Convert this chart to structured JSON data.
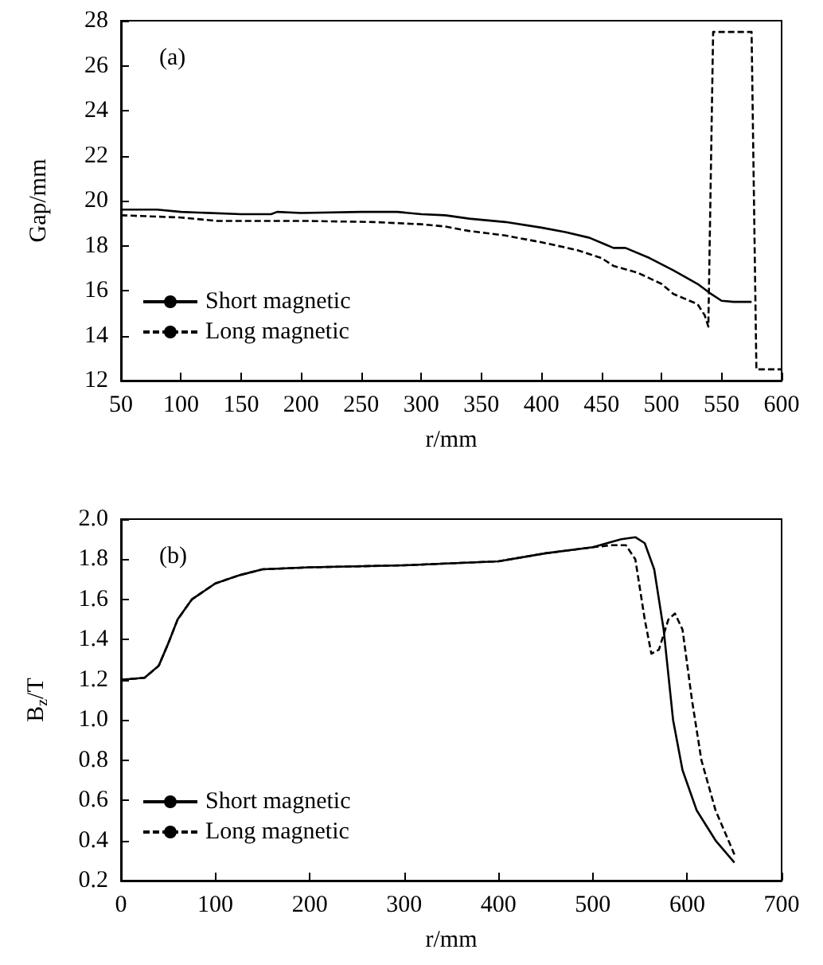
{
  "chart_data": [
    {
      "type": "line",
      "xlabel": "r/mm",
      "ylabel": "Gap/mm",
      "annotations": [
        "(a)"
      ],
      "xlim": [
        50,
        600
      ],
      "xticks": [
        50,
        100,
        150,
        200,
        250,
        300,
        350,
        400,
        450,
        500,
        550,
        600
      ],
      "ylim": [
        12,
        28
      ],
      "yticks": [
        12,
        14,
        16,
        18,
        20,
        22,
        24,
        26,
        28
      ],
      "grid": false,
      "legend": "bottom left",
      "marker": "none",
      "series": [
        {
          "name": "Short magnetic",
          "color": "#000000",
          "line_style": "solid",
          "x": [
            50,
            80,
            100,
            150,
            175,
            180,
            200,
            250,
            280,
            300,
            320,
            340,
            370,
            400,
            420,
            440,
            460,
            470,
            490,
            510,
            530,
            540,
            550,
            560,
            575
          ],
          "values": [
            19.6,
            19.6,
            19.5,
            19.4,
            19.4,
            19.5,
            19.45,
            19.5,
            19.5,
            19.4,
            19.35,
            19.2,
            19.05,
            18.8,
            18.6,
            18.35,
            17.9,
            17.9,
            17.45,
            16.9,
            16.3,
            15.9,
            15.55,
            15.5,
            15.5
          ]
        },
        {
          "name": "Long magnetic",
          "color": "#000000",
          "line_style": "dashed",
          "x": [
            50,
            100,
            130,
            200,
            260,
            300,
            320,
            340,
            370,
            400,
            430,
            450,
            460,
            480,
            500,
            510,
            530,
            536,
            539,
            543,
            575,
            579,
            600
          ],
          "values": [
            19.35,
            19.25,
            19.1,
            19.1,
            19.05,
            18.95,
            18.85,
            18.65,
            18.45,
            18.15,
            17.8,
            17.45,
            17.1,
            16.8,
            16.3,
            15.85,
            15.4,
            14.9,
            14.4,
            27.5,
            27.5,
            12.5,
            12.5
          ]
        }
      ]
    },
    {
      "type": "line",
      "xlabel": "r/mm",
      "ylabel": "B$_{z}$/T",
      "annotations": [
        "(b)"
      ],
      "xlim": [
        0,
        700
      ],
      "xticks": [
        0,
        100,
        200,
        300,
        400,
        500,
        600,
        700
      ],
      "ylim": [
        0.2,
        2.0
      ],
      "yticks": [
        {
          "value": 0.2,
          "label": "0.2"
        },
        {
          "value": 0.4,
          "label": "0.4"
        },
        {
          "value": 0.6,
          "label": "0.6"
        },
        {
          "value": 0.8,
          "label": "0.8"
        },
        {
          "value": 1.0,
          "label": "1.0"
        },
        {
          "value": 1.2,
          "label": "1.2"
        },
        {
          "value": 1.4,
          "label": "1.4"
        },
        {
          "value": 1.6,
          "label": "1.6"
        },
        {
          "value": 1.8,
          "label": "1.8"
        },
        {
          "value": 2.0,
          "label": "2.0"
        }
      ],
      "grid": false,
      "legend": "bottom left",
      "marker": "none",
      "series": [
        {
          "name": "Short magnetic",
          "color": "#000000",
          "line_style": "solid",
          "x": [
            0,
            25,
            40,
            50,
            60,
            75,
            100,
            125,
            150,
            200,
            300,
            400,
            450,
            500,
            530,
            545,
            555,
            565,
            575,
            585,
            595,
            610,
            630,
            650
          ],
          "values": [
            1.2,
            1.21,
            1.27,
            1.38,
            1.5,
            1.6,
            1.68,
            1.72,
            1.75,
            1.76,
            1.77,
            1.79,
            1.83,
            1.86,
            1.9,
            1.91,
            1.88,
            1.75,
            1.45,
            1.0,
            0.75,
            0.55,
            0.4,
            0.29
          ]
        },
        {
          "name": "Long magnetic",
          "color": "#000000",
          "line_style": "dashed",
          "x": [
            0,
            25,
            40,
            50,
            60,
            75,
            100,
            125,
            150,
            200,
            300,
            400,
            450,
            500,
            520,
            535,
            545,
            555,
            562,
            570,
            580,
            587,
            595,
            605,
            615,
            630,
            650
          ],
          "values": [
            1.2,
            1.21,
            1.27,
            1.38,
            1.5,
            1.6,
            1.68,
            1.72,
            1.75,
            1.76,
            1.77,
            1.79,
            1.83,
            1.86,
            1.87,
            1.87,
            1.8,
            1.5,
            1.33,
            1.35,
            1.5,
            1.53,
            1.45,
            1.1,
            0.8,
            0.55,
            0.33
          ]
        }
      ]
    }
  ]
}
